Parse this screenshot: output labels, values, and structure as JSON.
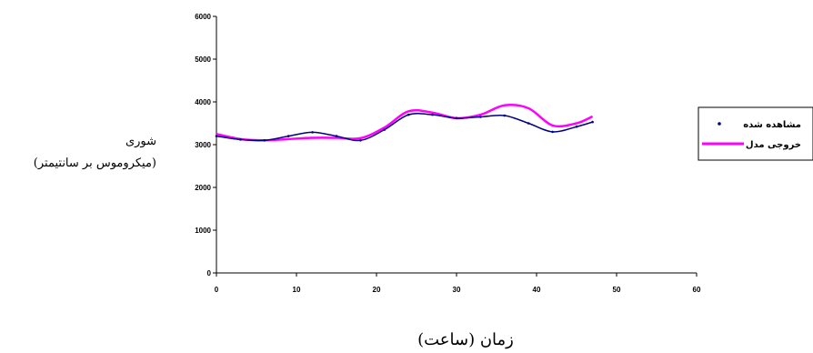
{
  "chart_data": {
    "type": "line",
    "xlabel": "زمان (ساعت)",
    "ylabel_line1": "شوری",
    "ylabel_line2": "(میکروموس بر سانتیمتر)",
    "xlim": [
      0,
      60
    ],
    "ylim": [
      0,
      6000
    ],
    "xticks": [
      "0",
      "10",
      "20",
      "30",
      "40",
      "50",
      "60"
    ],
    "yticks": [
      "0",
      "1000",
      "2000",
      "3000",
      "4000",
      "5000",
      "6000"
    ],
    "grid": false,
    "legend_position": "right",
    "series": [
      {
        "name": "مشاهده شده",
        "color": "#000080",
        "x": [
          0,
          3,
          6,
          9,
          12,
          15,
          18,
          21,
          24,
          27,
          30,
          33,
          36,
          39,
          42,
          45,
          47
        ],
        "y": [
          3200,
          3120,
          3100,
          3200,
          3290,
          3200,
          3100,
          3350,
          3700,
          3700,
          3620,
          3650,
          3680,
          3500,
          3300,
          3420,
          3530
        ]
      },
      {
        "name": "خروجی مدل",
        "color": "#ff00ff",
        "x": [
          0,
          3,
          6,
          9,
          12,
          15,
          18,
          21,
          24,
          27,
          30,
          33,
          36,
          39,
          42,
          45,
          47
        ],
        "y": [
          3250,
          3130,
          3100,
          3130,
          3160,
          3160,
          3150,
          3400,
          3780,
          3750,
          3620,
          3700,
          3920,
          3850,
          3450,
          3500,
          3660
        ]
      }
    ]
  }
}
